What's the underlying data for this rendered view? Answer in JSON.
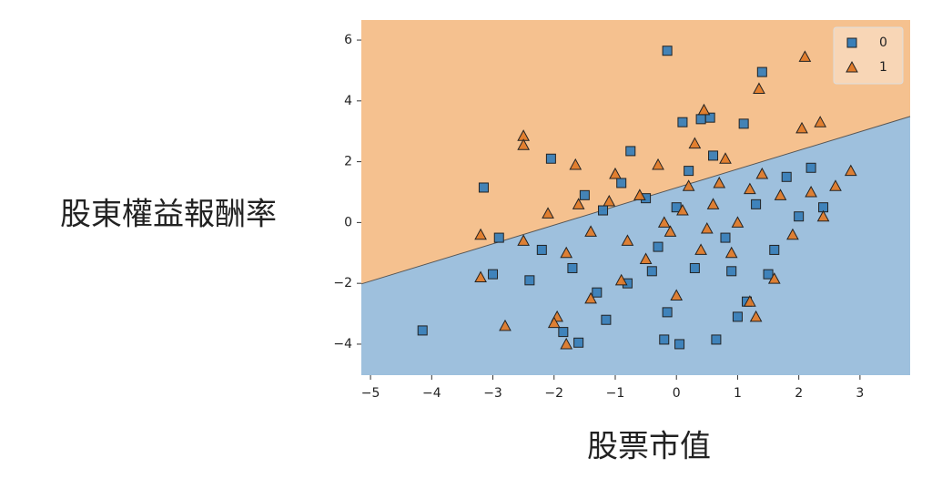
{
  "chart_data": {
    "type": "decision_regions",
    "xlabel": "股票市值",
    "ylabel": "股東權益報酬率",
    "xlim": [
      -5.15,
      3.82
    ],
    "ylim": [
      -5.02,
      6.66
    ],
    "xticks": [
      {
        "value": -5,
        "label": "−5"
      },
      {
        "value": -4,
        "label": "−4"
      },
      {
        "value": -3,
        "label": "−3"
      },
      {
        "value": -2,
        "label": "−2"
      },
      {
        "value": -1,
        "label": "−1"
      },
      0,
      1,
      2,
      3
    ],
    "yticks": [
      {
        "value": -4,
        "label": "−4"
      },
      {
        "value": -2,
        "label": "−2"
      },
      0,
      2,
      4,
      6
    ],
    "decision_boundary": {
      "x": [
        -5.15,
        3.82
      ],
      "y": [
        -2.02,
        3.49
      ]
    },
    "region_colors": {
      "above": "#f5c18f",
      "below": "#9ec0dd"
    },
    "legend": "upper right",
    "series": [
      {
        "name": "0",
        "color": "#3a7fb8",
        "marker": "square",
        "x": [
          -0.15,
          1.4,
          -4.15,
          -3.15,
          -2.05,
          -0.2,
          0.05,
          0.65,
          -0.15,
          -1.6,
          -1.85,
          -1.15,
          1.0,
          1.15,
          -2.9,
          -3.0,
          -2.4,
          0.55,
          0.4,
          1.1,
          0.1,
          -0.75,
          2.2,
          1.5,
          -1.3,
          -0.8,
          -1.7,
          0.3,
          0.9,
          1.8,
          -0.5,
          0.2,
          -1.2,
          0.8,
          -0.3,
          1.3,
          -2.2,
          2.0,
          0.0,
          -0.9,
          0.6,
          -0.4,
          1.6,
          -1.5,
          2.4
        ],
        "values": [
          5.65,
          4.95,
          -3.55,
          1.15,
          2.1,
          -3.85,
          -4.0,
          -3.85,
          -2.95,
          -3.95,
          -3.6,
          -3.2,
          -3.1,
          -2.6,
          -0.5,
          -1.7,
          -1.9,
          3.45,
          3.4,
          3.25,
          3.3,
          2.35,
          1.8,
          -1.7,
          -2.3,
          -2.0,
          -1.5,
          -1.5,
          -1.6,
          1.5,
          0.8,
          1.7,
          0.4,
          -0.5,
          -0.8,
          0.6,
          -0.9,
          0.2,
          0.5,
          1.3,
          2.2,
          -1.6,
          -0.9,
          0.9,
          0.5
        ]
      },
      {
        "name": "1",
        "color": "#e07b2a",
        "marker": "triangle",
        "x": [
          2.1,
          1.35,
          0.45,
          2.35,
          2.05,
          -2.5,
          -2.5,
          -1.65,
          2.85,
          -3.2,
          -3.2,
          -2.8,
          -1.95,
          -1.8,
          1.3,
          1.2,
          1.6,
          -2.0,
          -1.4,
          0.0,
          -0.3,
          0.3,
          0.8,
          1.4,
          -1.0,
          -0.6,
          0.1,
          0.6,
          -0.1,
          -0.8,
          0.4,
          1.0,
          1.7,
          2.2,
          2.4,
          -1.4,
          -2.1,
          -1.8,
          -0.5,
          0.9,
          1.9,
          -1.1,
          0.2,
          0.7,
          -0.2,
          -2.5,
          -0.9,
          0.5,
          1.2,
          -1.6,
          2.6
        ],
        "values": [
          5.45,
          4.4,
          3.7,
          3.3,
          3.1,
          2.85,
          2.55,
          1.9,
          1.7,
          -0.4,
          -1.8,
          -3.4,
          -3.1,
          -4.0,
          -3.1,
          -2.6,
          -1.85,
          -3.3,
          -2.5,
          -2.4,
          1.9,
          2.6,
          2.1,
          1.6,
          1.6,
          0.9,
          0.4,
          0.6,
          -0.3,
          -0.6,
          -0.9,
          0.0,
          0.9,
          1.0,
          0.2,
          -0.3,
          0.3,
          -1.0,
          -1.2,
          -1.0,
          -0.4,
          0.7,
          1.2,
          1.3,
          0.0,
          -0.6,
          -1.9,
          -0.2,
          1.1,
          0.6,
          1.2
        ]
      }
    ]
  }
}
